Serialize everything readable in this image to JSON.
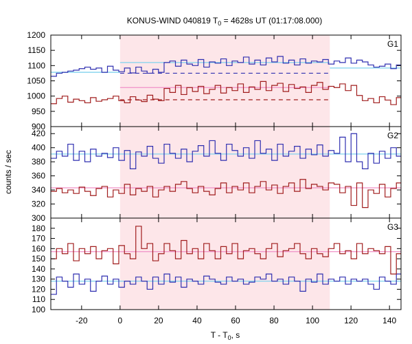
{
  "colors": {
    "shade": "#fde6e9",
    "blue_series": "#2f2fb0",
    "red_series": "#a01c1c",
    "cyan_fit": "#7fd2ee",
    "pink_fit": "#f090c8",
    "frame": "#000000"
  },
  "chart_data": {
    "type": "line",
    "style": "step-histogram",
    "title_main": "KONUS-WIND 040819 T",
    "title_sub": "0",
    "title_rest": " = 4628s UT (01:17:08.000)",
    "xlabel_main": "T - T",
    "xlabel_sub": "0",
    "xlabel_rest": ", s",
    "ylabel": "counts / sec",
    "xlim": [
      -36,
      146
    ],
    "xticks": [
      -20,
      0,
      20,
      40,
      60,
      80,
      100,
      120,
      140
    ],
    "xtick_labels": [
      "-20",
      "0",
      "20",
      "40",
      "60",
      "80",
      "100",
      "120",
      "140"
    ],
    "highlight_interval": [
      0,
      109
    ],
    "bin_width": 2.944,
    "x_start": -36,
    "panels": [
      {
        "label": "G1",
        "ylim": [
          900,
          1200
        ],
        "yticks": [
          900,
          950,
          1000,
          1050,
          1100,
          1150,
          1200
        ],
        "series": [
          {
            "color": "blue",
            "values": [
              1065,
              1075,
              1078,
              1082,
              1085,
              1090,
              1095,
              1088,
              1092,
              1078,
              1098,
              1085,
              1080,
              1092,
              1076,
              1095,
              1082,
              1075,
              1088,
              1078,
              1110,
              1115,
              1098,
              1118,
              1105,
              1100,
              1120,
              1095,
              1112,
              1108,
              1122,
              1100,
              1115,
              1110,
              1128,
              1105,
              1118,
              1102,
              1125,
              1112,
              1130,
              1108,
              1118,
              1102,
              1122,
              1108,
              1115,
              1112,
              1120,
              1105,
              1115,
              1110,
              1125,
              1108,
              1118,
              1112,
              1102,
              1095,
              1098,
              1105,
              1090,
              1102,
              1082,
              1095,
              1098,
              1085,
              1108,
              1095,
              1088,
              1102,
              1092
            ]
          },
          {
            "color": "red",
            "values": [
              975,
              992,
              1000,
              980,
              990,
              985,
              978,
              995,
              983,
              988,
              992,
              1000,
              985,
              978,
              998,
              987,
              982,
              1003,
              990,
              985,
              1025,
              1012,
              1035,
              1005,
              1028,
              1015,
              1032,
              1008,
              1022,
              1035,
              1010,
              1028,
              1018,
              1040,
              1012,
              1030,
              1022,
              1048,
              1018,
              1035,
              1042,
              1015,
              1038,
              1025,
              1030,
              1012,
              1035,
              1045,
              1022,
              1032,
              1028,
              1040,
              1018,
              1035,
              1002,
              985,
              992,
              978,
              998,
              987,
              972,
              995,
              982,
              990,
              965,
              988,
              992,
              980,
              988,
              985,
              990
            ]
          }
        ],
        "fits": [
          {
            "color": "cyan",
            "segments": [
              [
                -36,
                0,
                1078
              ],
              [
                0,
                109,
                1110
              ],
              [
                109,
                146,
                1092
              ]
            ]
          },
          {
            "color": "pink",
            "segments": [
              [
                0,
                109,
                1028
              ]
            ]
          }
        ],
        "dashed_baselines": [
          {
            "color": "blue",
            "x": [
              0,
              109
            ],
            "y": 1075
          },
          {
            "color": "red",
            "x": [
              0,
              109
            ],
            "y": 988
          }
        ]
      },
      {
        "label": "G2",
        "ylim": [
          300,
          430
        ],
        "yticks": [
          300,
          320,
          340,
          360,
          380,
          400,
          420
        ],
        "series": [
          {
            "color": "blue",
            "values": [
              385,
              395,
              388,
              405,
              382,
              395,
              380,
              398,
              388,
              392,
              386,
              400,
              382,
              396,
              370,
              394,
              388,
              402,
              385,
              378,
              405,
              392,
              385,
              398,
              380,
              395,
              403,
              388,
              410,
              392,
              382,
              405,
              396,
              388,
              400,
              385,
              410,
              392,
              398,
              382,
              405,
              388,
              395,
              402,
              385,
              398,
              390,
              404,
              388,
              396,
              392,
              415,
              380,
              420,
              380,
              370,
              392,
              378,
              395,
              385,
              400,
              388,
              372,
              394,
              398,
              384,
              400,
              388,
              380,
              392,
              398
            ]
          },
          {
            "color": "red",
            "values": [
              338,
              342,
              336,
              340,
              335,
              344,
              338,
              332,
              342,
              345,
              330,
              340,
              335,
              348,
              333,
              342,
              338,
              345,
              330,
              340,
              345,
              338,
              348,
              352,
              342,
              336,
              345,
              338,
              333,
              342,
              350,
              336,
              345,
              340,
              350,
              336,
              345,
              352,
              340,
              347,
              335,
              345,
              350,
              338,
              355,
              342,
              348,
              345,
              340,
              350,
              348,
              336,
              345,
              318,
              350,
              315,
              340,
              335,
              348,
              330,
              342,
              350,
              338,
              345,
              355,
              340,
              345,
              335,
              342,
              330,
              345
            ]
          }
        ],
        "fits": [
          {
            "color": "cyan",
            "segments": [
              [
                -36,
                146,
                391
              ]
            ]
          },
          {
            "color": "pink",
            "segments": [
              [
                -36,
                146,
                343
              ]
            ]
          }
        ],
        "dashed_baselines": []
      },
      {
        "label": "G3",
        "ylim": [
          100,
          190
        ],
        "yticks": [
          100,
          110,
          120,
          130,
          140,
          150,
          160,
          170,
          180
        ],
        "series": [
          {
            "color": "blue",
            "values": [
              115,
              132,
              128,
              122,
              135,
              125,
              130,
              118,
              128,
              133,
              125,
              130,
              122,
              128,
              125,
              132,
              128,
              120,
              132,
              125,
              135,
              127,
              132,
              122,
              130,
              128,
              125,
              133,
              130,
              127,
              125,
              132,
              128,
              130,
              125,
              127,
              132,
              130,
              135,
              128,
              130,
              125,
              132,
              128,
              118,
              130,
              127,
              135,
              125,
              130,
              128,
              132,
              125,
              130,
              128,
              130,
              125,
              120,
              132,
              128,
              125,
              135,
              130,
              128,
              132,
              125,
              135,
              128,
              130,
              125,
              132
            ]
          },
          {
            "color": "red",
            "values": [
              150,
              160,
              155,
              165,
              148,
              160,
              155,
              162,
              150,
              158,
              160,
              145,
              163,
              155,
              150,
              182,
              160,
              165,
              148,
              155,
              165,
              158,
              150,
              168,
              155,
              160,
              150,
              165,
              158,
              150,
              162,
              155,
              165,
              150,
              158,
              160,
              155,
              150,
              160,
              165,
              152,
              158,
              160,
              165,
              155,
              150,
              160,
              155,
              152,
              160,
              165,
              155,
              158,
              150,
              165,
              155,
              160,
              158,
              155,
              162,
              135,
              155,
              158,
              165,
              150,
              168,
              160,
              155,
              160,
              150,
              160
            ]
          }
        ],
        "fits": [
          {
            "color": "cyan",
            "segments": [
              [
                -36,
                146,
                128
              ]
            ]
          },
          {
            "color": "pink",
            "segments": [
              [
                -36,
                146,
                157
              ]
            ]
          }
        ],
        "dashed_baselines": []
      }
    ]
  }
}
